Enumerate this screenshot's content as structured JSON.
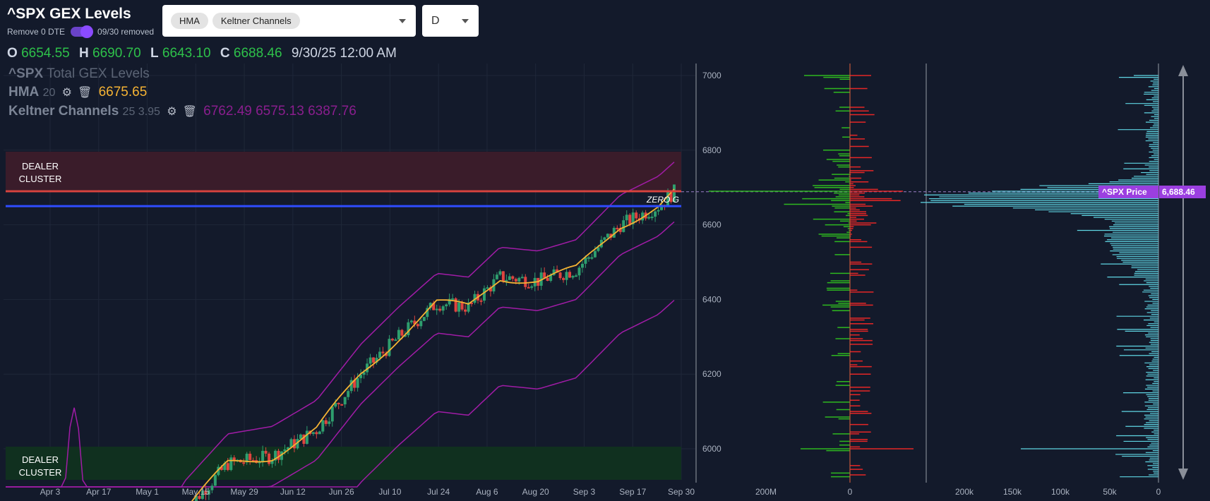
{
  "header": {
    "title": "^SPX GEX Levels",
    "remove_label": "Remove 0 DTE",
    "removed_text": "09/30 removed",
    "indicators": [
      "HMA",
      "Keltner Channels"
    ],
    "timeframe": "D"
  },
  "ohlc": {
    "o_label": "O",
    "o": "6654.55",
    "h_label": "H",
    "h": "6690.70",
    "l_label": "L",
    "l": "6643.10",
    "c_label": "C",
    "c": "6688.46",
    "time": "9/30/25 12:00 AM"
  },
  "legend": {
    "line1_prefix": "^SPX",
    "line1_rest": "Total GEX Levels",
    "hma_label": "HMA",
    "hma_param": "20",
    "hma_value": "6675.65",
    "kc_label": "Keltner Channels",
    "kc_params": "25 3.95",
    "kc_values": "6762.49 6575.13 6387.76"
  },
  "colors": {
    "up": "#2e9e6e",
    "down": "#e0443f",
    "hma": "#f5b334",
    "keltner": "#a01ca6",
    "dealer": "#d9433e",
    "zero_gamma": "#2f4dff",
    "call": "#2eb81f",
    "put": "#e52626",
    "profile": "#5fd6e4",
    "price_tag": "#9b3fe0"
  },
  "zones": {
    "dealer_top_label": "DEALER\nCLUSTER",
    "dealer_bottom_label": "DEALER\nCLUSTER",
    "zero_gamma_label": "ZERO G"
  },
  "price_tag": {
    "label": "^SPX Price",
    "value": "6,688.46"
  },
  "chart_data": {
    "type": "candlestick",
    "x_ticks": [
      "Apr 3",
      "Apr 17",
      "May 1",
      "May 15",
      "May 29",
      "Jun 12",
      "Jun 26",
      "Jul 10",
      "Jul 24",
      "Aug 6",
      "Aug 20",
      "Sep 3",
      "Sep 17",
      "Sep 30"
    ],
    "y_ticks": [
      6000,
      6200,
      6400,
      6600,
      6800,
      7000
    ],
    "ylim": [
      5920,
      7020
    ],
    "gex_ticks": [
      "200M",
      "0"
    ],
    "volume_ticks": [
      "200k",
      "150k",
      "100k",
      "50k",
      "0"
    ],
    "levels": {
      "dealer_cluster_top": 6690,
      "zero_gamma": 6650,
      "dealer_cluster_bottom_max": 6000
    },
    "last_close": 6688.46
  }
}
